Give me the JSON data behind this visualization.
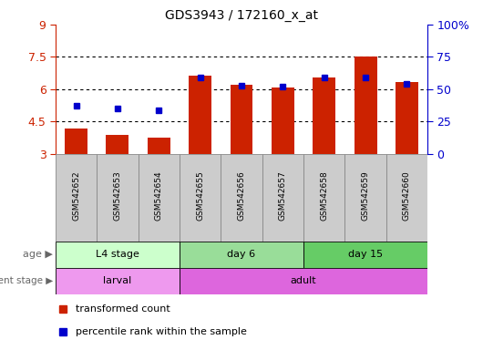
{
  "title": "GDS3943 / 172160_x_at",
  "samples": [
    "GSM542652",
    "GSM542653",
    "GSM542654",
    "GSM542655",
    "GSM542656",
    "GSM542657",
    "GSM542658",
    "GSM542659",
    "GSM542660"
  ],
  "transformed_count": [
    4.2,
    3.9,
    3.75,
    6.65,
    6.2,
    6.1,
    6.55,
    7.5,
    6.35
  ],
  "percentile_rank_pct": [
    37,
    35,
    34,
    59,
    53,
    52,
    59,
    59,
    54
  ],
  "ylim_left": [
    3,
    9
  ],
  "ylim_right": [
    0,
    100
  ],
  "yticks_left": [
    3,
    4.5,
    6,
    7.5,
    9
  ],
  "yticks_right": [
    0,
    25,
    50,
    75,
    100
  ],
  "ytick_labels_left": [
    "3",
    "4.5",
    "6",
    "7.5",
    "9"
  ],
  "ytick_labels_right": [
    "0",
    "25",
    "50",
    "75",
    "100%"
  ],
  "bar_color": "#cc2200",
  "dot_color": "#0000cc",
  "bar_bottom": 3.0,
  "age_groups": [
    {
      "label": "L4 stage",
      "start": 0,
      "end": 3,
      "color": "#ccffcc"
    },
    {
      "label": "day 6",
      "start": 3,
      "end": 6,
      "color": "#99dd99"
    },
    {
      "label": "day 15",
      "start": 6,
      "end": 9,
      "color": "#66cc66"
    }
  ],
  "dev_groups": [
    {
      "label": "larval",
      "start": 0,
      "end": 3,
      "color": "#ee99ee"
    },
    {
      "label": "adult",
      "start": 3,
      "end": 9,
      "color": "#dd66dd"
    }
  ],
  "age_label": "age",
  "dev_label": "development stage",
  "legend_bar": "transformed count",
  "legend_dot": "percentile rank within the sample",
  "bg_color": "#ffffff",
  "tick_bg_color": "#cccccc",
  "sample_col_border": "#888888"
}
